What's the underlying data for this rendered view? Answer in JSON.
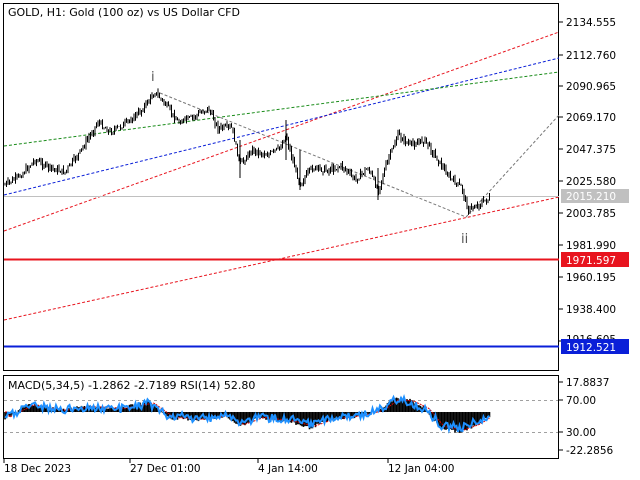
{
  "main": {
    "title": "GOLD, H1:  Gold (100 oz) vs US Dollar CFD",
    "price_ticks": [
      "2134.555",
      "2112.760",
      "2090.965",
      "2069.170",
      "2047.375",
      "2025.580",
      "2003.785",
      "1981.990",
      "1960.195",
      "1938.400",
      "1916.605"
    ],
    "current_price": "2015.210",
    "red_level": "1971.597",
    "blue_level": "1912.521",
    "wave_labels": [
      "i",
      "ii"
    ]
  },
  "macd": {
    "title": "MACD(5,34,5) -1.2862 -2.7189 RSI(14) 52.80",
    "ticks": [
      "17.8837",
      "70.00",
      "30.00",
      "-22.2856"
    ]
  },
  "time_axis": {
    "labels": [
      "18 Dec 2023",
      "27 Dec 01:00",
      "4 Jan 14:00",
      "12 Jan 04:00"
    ]
  },
  "colors": {
    "red_level": "#e8141e",
    "blue_level": "#0a1fd8",
    "current_price_label": "#c0c0c0",
    "rsi": "#1e90ff"
  }
}
